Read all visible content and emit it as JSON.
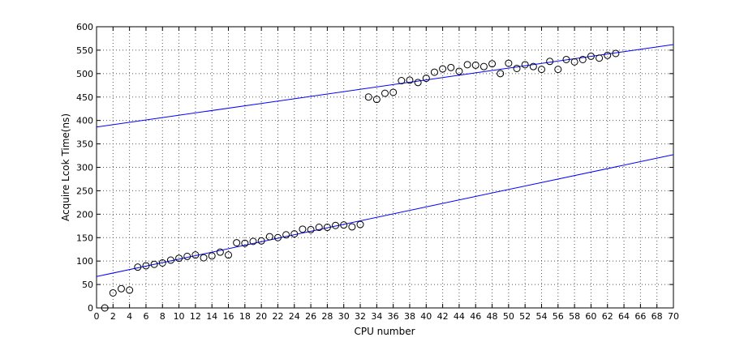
{
  "chart_data": {
    "type": "scatter",
    "title": "",
    "xlabel": "CPU number",
    "ylabel": "Acquire Lcok Time(ns)",
    "xlim": [
      0,
      70
    ],
    "ylim": [
      0,
      600
    ],
    "xticks": [
      0,
      2,
      4,
      6,
      8,
      10,
      12,
      14,
      16,
      18,
      20,
      22,
      24,
      26,
      28,
      30,
      32,
      34,
      36,
      38,
      40,
      42,
      44,
      46,
      48,
      50,
      52,
      54,
      56,
      58,
      60,
      62,
      64,
      66,
      68,
      70
    ],
    "yticks": [
      0,
      50,
      100,
      150,
      200,
      250,
      300,
      350,
      400,
      450,
      500,
      550,
      600
    ],
    "grid": true,
    "colors": {
      "marker": "#000000",
      "fit_line": "#0000ff"
    },
    "series": [
      {
        "marker": "circle",
        "x": [
          1,
          2,
          3,
          4,
          5,
          6,
          7,
          8,
          9,
          10,
          11,
          12,
          13,
          14,
          15,
          16,
          17,
          18,
          19,
          20,
          21,
          22,
          23,
          24,
          25,
          26,
          27,
          28,
          29,
          30,
          31,
          32,
          33,
          34,
          35,
          36,
          37,
          38,
          39,
          40,
          41,
          42,
          43,
          44,
          45,
          46,
          47,
          48,
          49,
          50,
          51,
          52,
          53,
          54,
          55,
          56,
          57,
          58,
          59,
          60,
          61,
          62,
          63
        ],
        "y": [
          0,
          32,
          41,
          38,
          87,
          90,
          93,
          96,
          102,
          106,
          110,
          113,
          107,
          111,
          119,
          113,
          139,
          138,
          142,
          143,
          152,
          150,
          156,
          158,
          168,
          167,
          172,
          172,
          176,
          177,
          173,
          178,
          450,
          445,
          458,
          460,
          485,
          486,
          481,
          490,
          503,
          510,
          513,
          505,
          519,
          518,
          515,
          521,
          500,
          522,
          511,
          519,
          515,
          509,
          526,
          509,
          530,
          525,
          530,
          537,
          533,
          539,
          543
        ]
      }
    ],
    "fit_lines": [
      {
        "x": [
          0,
          70
        ],
        "y": [
          67,
          327
        ]
      },
      {
        "x": [
          0,
          70
        ],
        "y": [
          386,
          562
        ]
      }
    ]
  }
}
